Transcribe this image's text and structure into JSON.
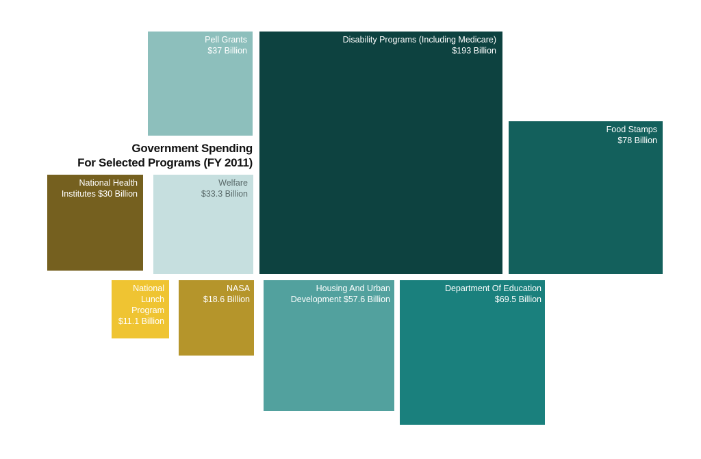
{
  "chart_data": {
    "type": "bubble-squares",
    "title_lines": [
      "Government Spending",
      "For Selected Programs (FY 2011)"
    ],
    "unit": "Billion USD",
    "items": [
      {
        "label": "Pell Grants",
        "value_text": "$37 Billion",
        "value": 37,
        "color": "#8dbfbc",
        "text_color": "#ffffff"
      },
      {
        "label": "Disability Programs (Including Medicare)",
        "value_text": "$193 Billion",
        "value": 193,
        "color": "#0d4240",
        "text_color": "#ffffff"
      },
      {
        "label": "Food Stamps",
        "value_text": "$78 Billion",
        "value": 78,
        "color": "#13605c",
        "text_color": "#ffffff"
      },
      {
        "label": "National Health Institutes $30 Billion",
        "value_text": "",
        "value": 30,
        "color": "#75601f",
        "text_color": "#ffffff"
      },
      {
        "label": "Welfare",
        "value_text": "$33.3 Billion",
        "value": 33.3,
        "color": "#c6dfdf",
        "text_color": "#5a6a6a"
      },
      {
        "label": "National Lunch Program",
        "value_text": "$11.1 Billion",
        "value": 11.1,
        "color": "#efc432",
        "text_color": "#ffffff"
      },
      {
        "label": "NASA",
        "value_text": "$18.6 Billion",
        "value": 18.6,
        "color": "#b5952b",
        "text_color": "#ffffff"
      },
      {
        "label": "Housing And Urban Development $57.6 Billion",
        "value_text": "",
        "value": 57.6,
        "color": "#52a19e",
        "text_color": "#ffffff"
      },
      {
        "label": "Department Of Education",
        "value_text": "$69.5 Billion",
        "value": 69.5,
        "color": "#1a807d",
        "text_color": "#ffffff"
      }
    ]
  }
}
